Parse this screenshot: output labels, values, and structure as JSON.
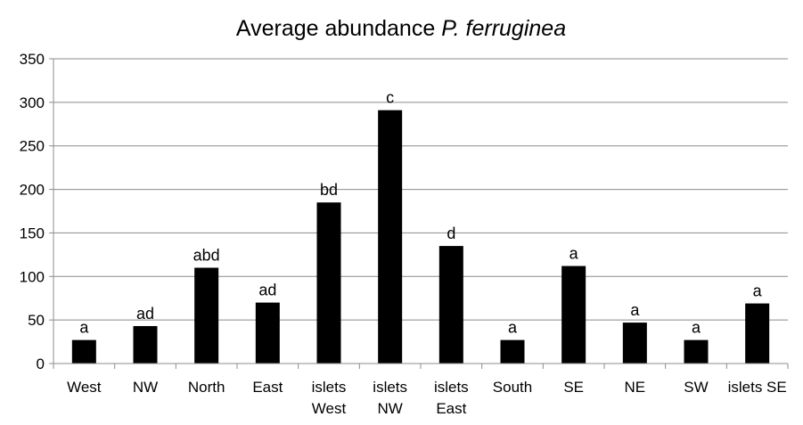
{
  "chart_data": {
    "type": "bar",
    "title": "Average abundance",
    "title_species": "P. ferruginea",
    "xlabel": "",
    "ylabel": "",
    "ylim": [
      0,
      350
    ],
    "yticks": [
      0,
      50,
      100,
      150,
      200,
      250,
      300,
      350
    ],
    "grid": true,
    "legend": "none",
    "bar_color": "#000000",
    "grid_color": "#8c8c8c",
    "categories": [
      [
        "West"
      ],
      [
        "NW"
      ],
      [
        "North"
      ],
      [
        "East"
      ],
      [
        "islets",
        "West"
      ],
      [
        "islets",
        "NW"
      ],
      [
        "islets",
        "East"
      ],
      [
        "South"
      ],
      [
        "SE"
      ],
      [
        "NE"
      ],
      [
        "SW"
      ],
      [
        "islets SE"
      ]
    ],
    "values": [
      27,
      43,
      110,
      70,
      185,
      291,
      135,
      27,
      112,
      47,
      27,
      69
    ],
    "significance_labels": [
      "a",
      "ad",
      "abd",
      "ad",
      "bd",
      "c",
      "d",
      "a",
      "a",
      "a",
      "a",
      "a"
    ]
  }
}
